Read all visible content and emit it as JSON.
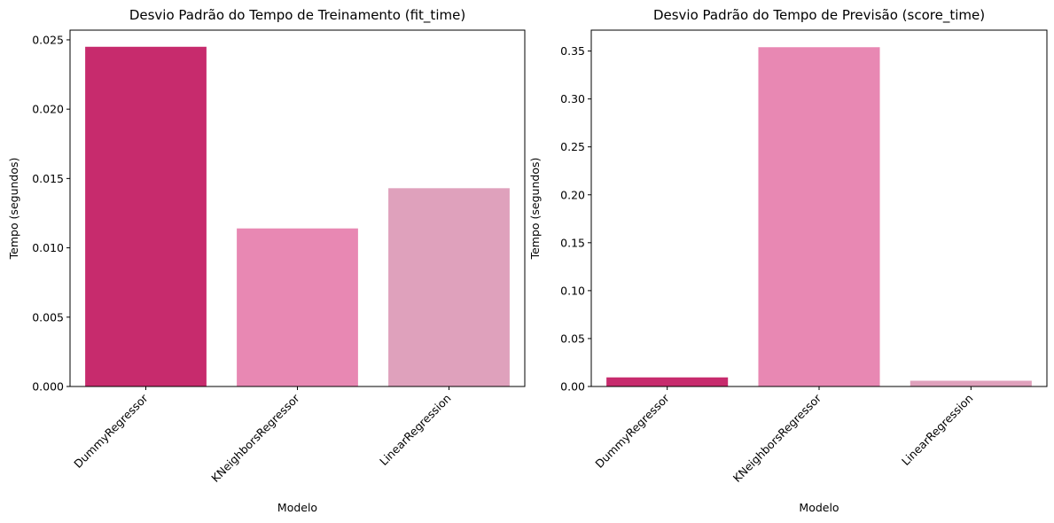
{
  "chart_data": [
    {
      "type": "bar",
      "title": "Desvio Padrão do Tempo de Treinamento (fit_time)",
      "xlabel": "Modelo",
      "ylabel": "Tempo (segundos)",
      "categories": [
        "DummyRegressor",
        "KNeighborsRegressor",
        "LinearRegression"
      ],
      "values": [
        0.0245,
        0.0114,
        0.0143
      ],
      "ylim": [
        0,
        0.0257
      ],
      "yticks": [
        "0.000",
        "0.005",
        "0.010",
        "0.015",
        "0.020",
        "0.025"
      ],
      "colors": [
        "#c72b6d",
        "#e888b3",
        "#dfa1bc"
      ],
      "grid": false
    },
    {
      "type": "bar",
      "title": "Desvio Padrão do Tempo de Previsão (score_time)",
      "xlabel": "Modelo",
      "ylabel": "Tempo (segundos)",
      "categories": [
        "DummyRegressor",
        "KNeighborsRegressor",
        "LinearRegression"
      ],
      "values": [
        0.0095,
        0.354,
        0.006
      ],
      "ylim": [
        0,
        0.3718
      ],
      "yticks": [
        "0.00",
        "0.05",
        "0.10",
        "0.15",
        "0.20",
        "0.25",
        "0.30",
        "0.35"
      ],
      "colors": [
        "#c72b6d",
        "#e888b3",
        "#dfa1bc"
      ],
      "grid": false
    }
  ]
}
